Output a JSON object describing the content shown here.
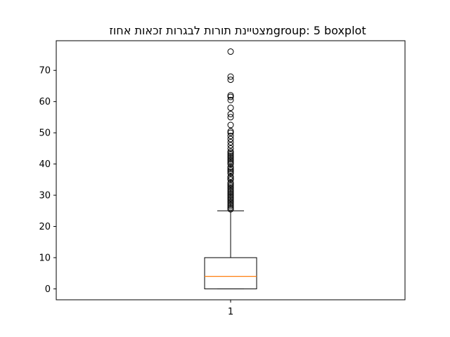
{
  "chart_data": {
    "type": "boxplot",
    "title": "מצטיינת  תורות לבגרות זכאות אחוזgroup: 5 boxplot",
    "xlabel": "",
    "ylabel": "",
    "categories": [
      "1"
    ],
    "ylim": [
      -3.5,
      79.5
    ],
    "yticks": [
      0,
      10,
      20,
      30,
      40,
      50,
      60,
      70
    ],
    "box": {
      "whisker_low": 0,
      "q1": 0,
      "median": 4,
      "q3": 10,
      "whisker_high": 25
    },
    "outliers": [
      25.5,
      26,
      26.5,
      27,
      27.5,
      28,
      28.5,
      29,
      29.5,
      30,
      30.5,
      31,
      31.5,
      32,
      32.5,
      33,
      33.5,
      34,
      35,
      35.5,
      36,
      37,
      37.5,
      38,
      38.5,
      39,
      40,
      40.5,
      41,
      41.5,
      42,
      42.5,
      43,
      43.5,
      44,
      45,
      46,
      47,
      48,
      49,
      50,
      50.5,
      52.5,
      55,
      56,
      58,
      60.5,
      61.5,
      62,
      67,
      68,
      76
    ],
    "colors": {
      "box": "#000000",
      "median": "#ff7f0e",
      "outlier": "#000000"
    },
    "grid": false
  }
}
